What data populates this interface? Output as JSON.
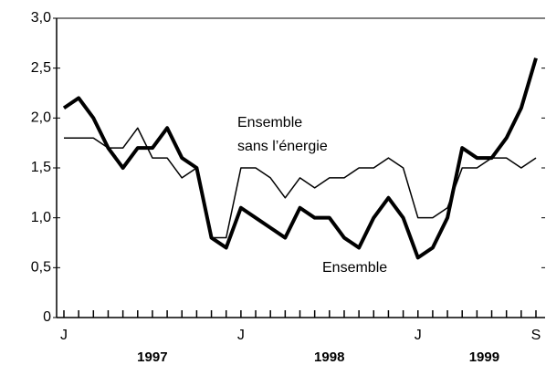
{
  "chart_data": {
    "type": "line",
    "categories": [
      "J",
      null,
      null,
      null,
      null,
      null,
      null,
      null,
      null,
      null,
      null,
      null,
      "J",
      null,
      null,
      null,
      null,
      null,
      null,
      null,
      null,
      null,
      null,
      null,
      "J",
      null,
      null,
      null,
      null,
      null,
      null,
      null,
      "S"
    ],
    "years": [
      "1997",
      "1998",
      "1999"
    ],
    "series": [
      {
        "label": [
          "Ensemble"
        ],
        "color": "#000000",
        "width": 4,
        "values": [
          2.1,
          2.2,
          2.0,
          1.7,
          1.5,
          1.7,
          1.7,
          1.9,
          1.6,
          1.5,
          0.8,
          0.7,
          1.1,
          1.0,
          0.9,
          0.8,
          1.1,
          1.0,
          1.0,
          0.8,
          0.7,
          1.0,
          1.2,
          1.0,
          0.6,
          0.7,
          1.0,
          1.7,
          1.6,
          1.6,
          1.8,
          2.1,
          2.6
        ]
      },
      {
        "label": [
          "Ensemble",
          "sans l’énergie"
        ],
        "color": "#000000",
        "width": 1.5,
        "values": [
          1.8,
          1.8,
          1.8,
          1.7,
          1.7,
          1.9,
          1.6,
          1.6,
          1.4,
          1.5,
          0.8,
          0.8,
          1.5,
          1.5,
          1.4,
          1.2,
          1.4,
          1.3,
          1.4,
          1.4,
          1.5,
          1.5,
          1.6,
          1.5,
          1.0,
          1.0,
          1.1,
          1.5,
          1.5,
          1.6,
          1.6,
          1.5,
          1.6
        ]
      }
    ],
    "ylim": [
      0,
      3
    ],
    "yticks": [
      0,
      {
        "value": 0.5,
        "label": "0,5"
      },
      {
        "value": 1,
        "label": "1,0"
      },
      {
        "value": 1.5,
        "label": "1,5"
      },
      {
        "value": 2,
        "label": "2,0"
      },
      {
        "value": 2.5,
        "label": "2,5"
      },
      {
        "value": 3,
        "label": "3,0"
      }
    ]
  }
}
